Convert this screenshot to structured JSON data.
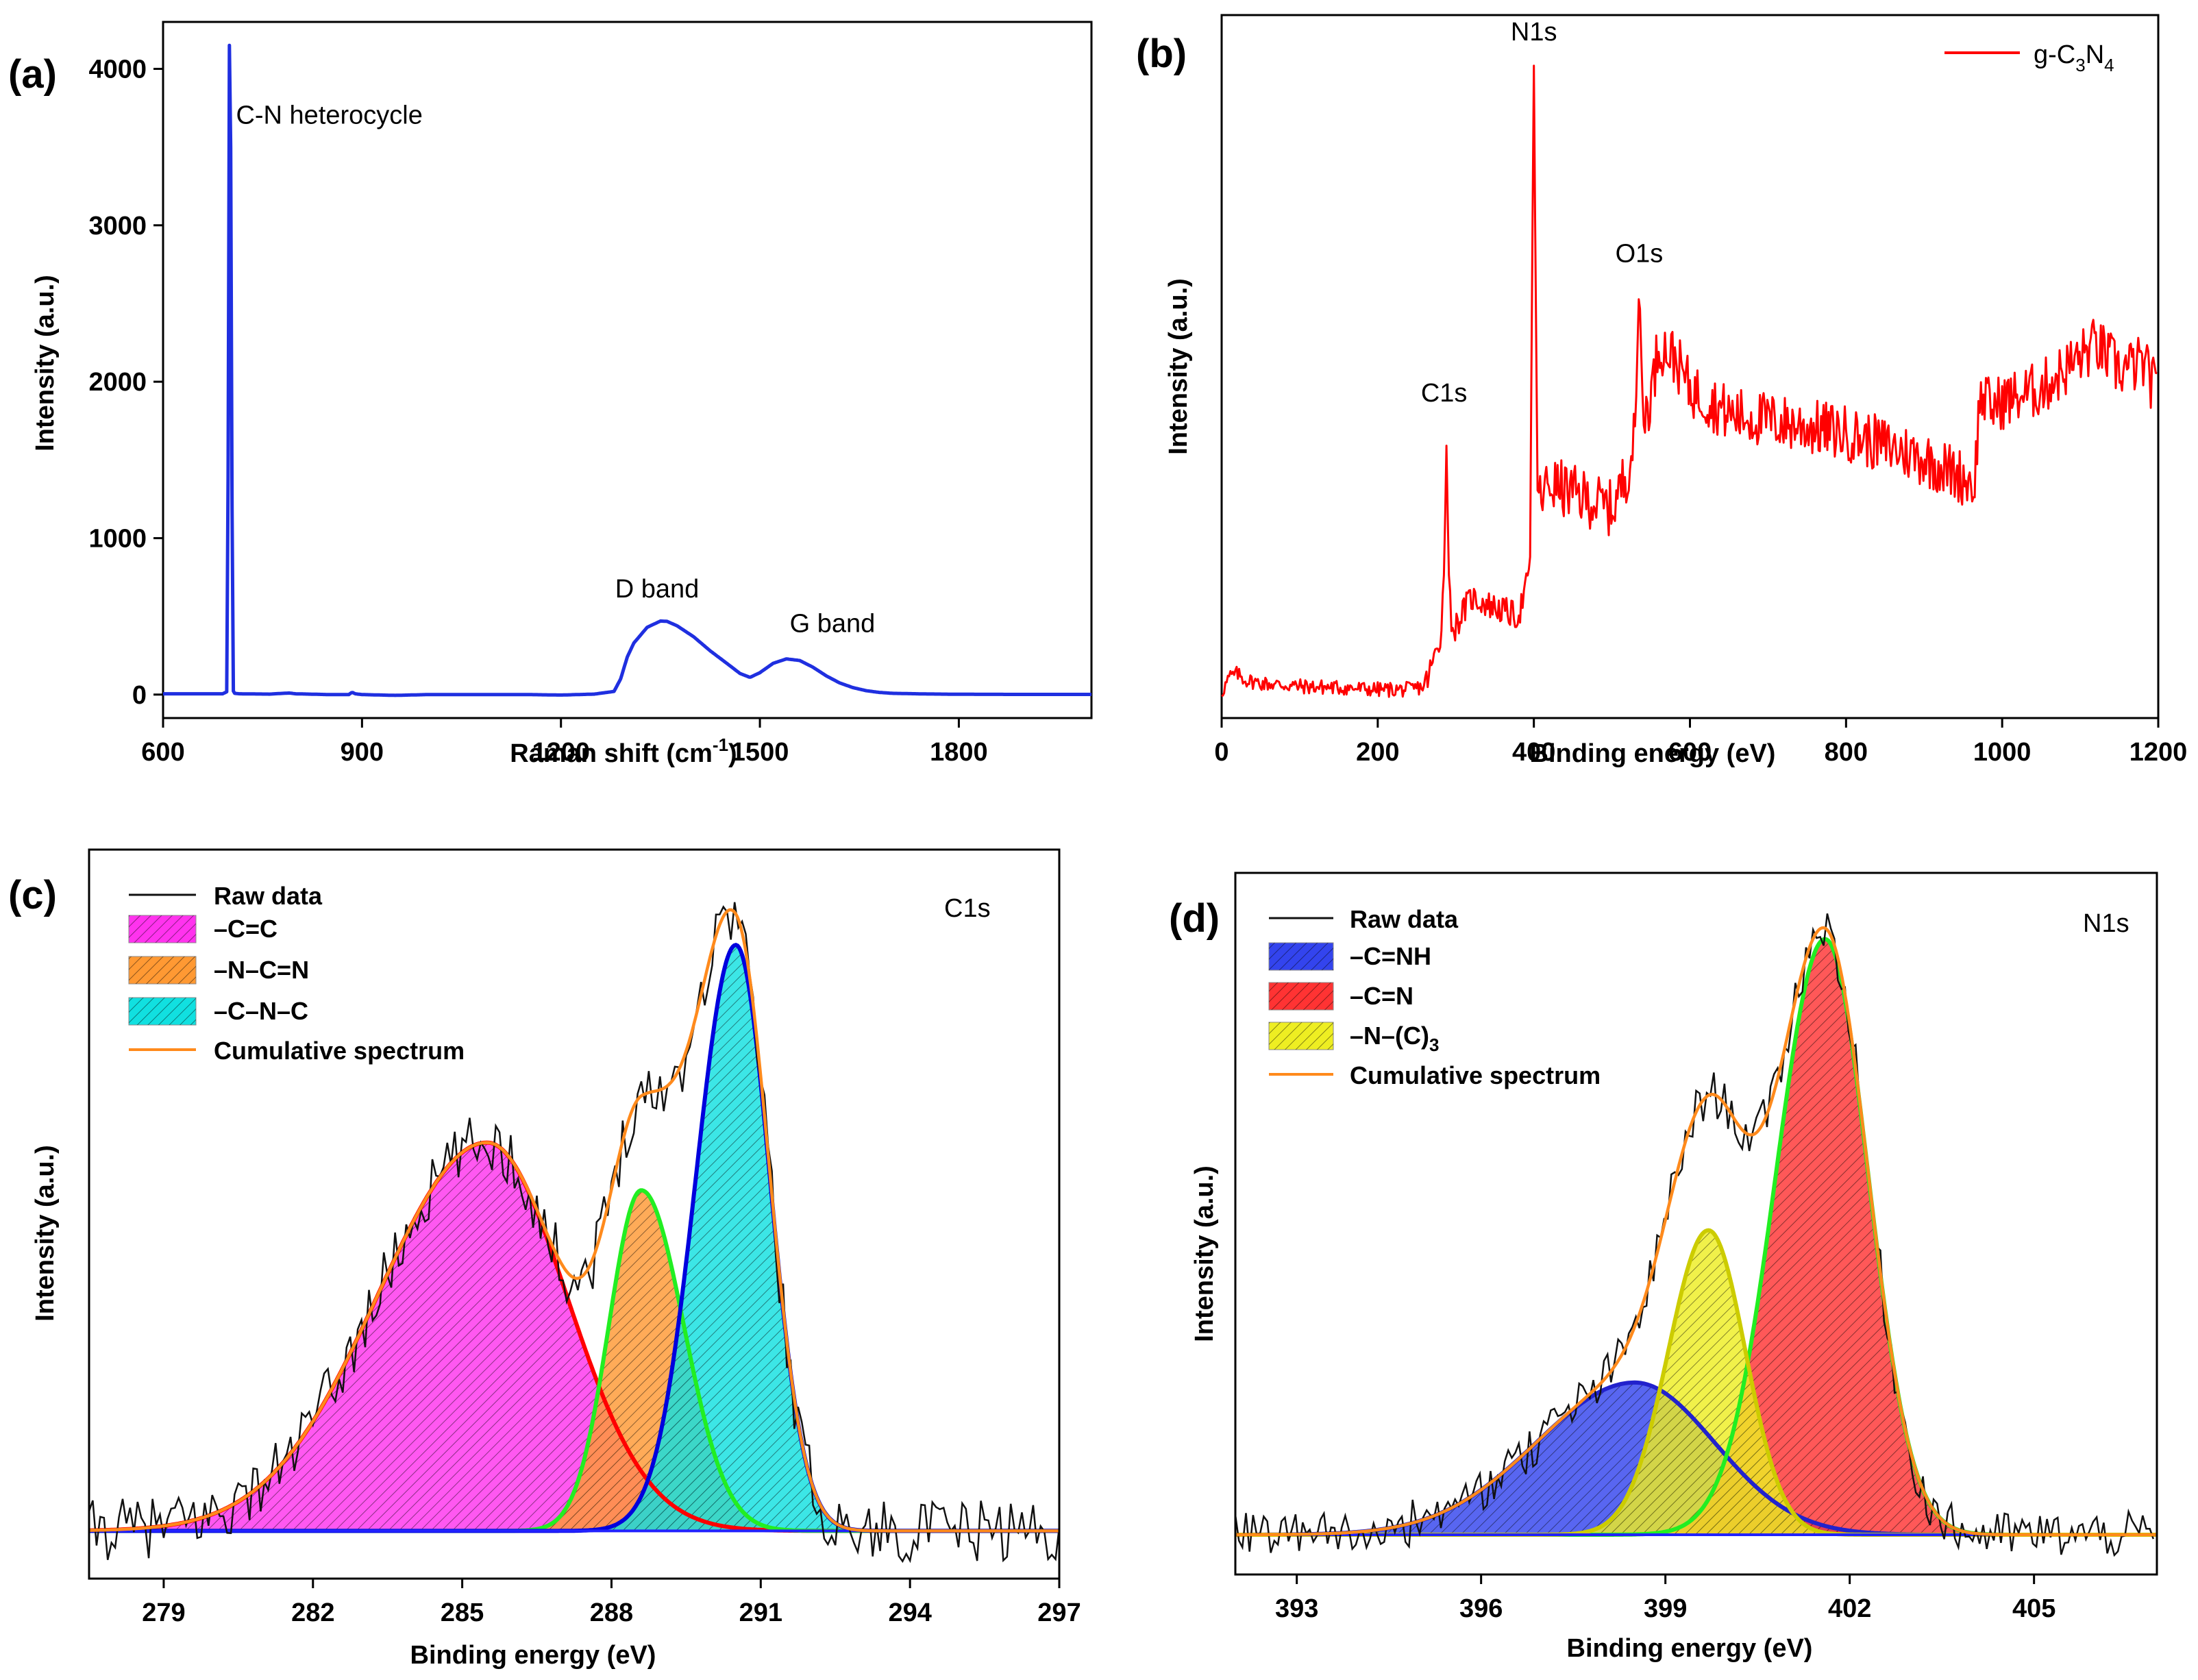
{
  "colors": {
    "raman": "#1f2fe0",
    "xps_survey": "#ff0000",
    "raw": "#111111",
    "cumulative": "#ff8a1c",
    "cc_fill": "#ff33ee",
    "ncn_fill": "#ff9933",
    "cnc_fill": "#11e0e0",
    "cnh_fill": "#3344ee",
    "cn_fill": "#ff3333",
    "nc3_fill": "#eeee22",
    "cc_line": "#ff0000",
    "ncn_line": "#22ee22",
    "cnc_line": "#0000dd",
    "cnh_line": "#2222cc",
    "cn_line": "#22ee22",
    "nc3_line": "#cccc00",
    "baseline": "#2222ff"
  },
  "chart_data": [
    {
      "panel": "(a)",
      "type": "line",
      "xlabel": "Raman shift (cm",
      "xlabel_sup": "-1",
      "xlabel_end": ")",
      "ylabel": "Intensity (a.u.)",
      "xlim": [
        600,
        2000
      ],
      "ylim": [
        -150,
        4300
      ],
      "xticks": [
        600,
        900,
        1200,
        1500,
        1800
      ],
      "yticks": [
        0,
        1000,
        2000,
        3000,
        4000
      ],
      "series": [
        {
          "name": "Raman",
          "x": [
            600,
            650,
            690,
            697,
            700,
            702,
            705,
            708,
            715,
            760,
            790,
            800,
            850,
            880,
            885,
            890,
            900,
            950,
            1000,
            1050,
            1100,
            1150,
            1200,
            1250,
            1280,
            1290,
            1300,
            1310,
            1330,
            1350,
            1360,
            1375,
            1400,
            1425,
            1450,
            1470,
            1485,
            1500,
            1520,
            1540,
            1560,
            1580,
            1600,
            1620,
            1640,
            1660,
            1680,
            1700,
            1750,
            1800,
            1900,
            2000
          ],
          "values": [
            5,
            5,
            5,
            20,
            4150,
            3500,
            30,
            8,
            5,
            3,
            10,
            5,
            0,
            0,
            15,
            5,
            0,
            -5,
            0,
            0,
            0,
            0,
            -3,
            3,
            20,
            100,
            240,
            330,
            430,
            470,
            468,
            440,
            370,
            280,
            200,
            135,
            110,
            140,
            200,
            228,
            218,
            175,
            120,
            75,
            45,
            25,
            14,
            8,
            4,
            2,
            1,
            1
          ]
        }
      ],
      "annotations": [
        {
          "text": "C-N heterocycle",
          "x": 710,
          "y": 3650
        },
        {
          "text": "D band",
          "x": 1345,
          "y": 620
        },
        {
          "text": "G band",
          "x": 1545,
          "y": 400
        }
      ]
    },
    {
      "panel": "(b)",
      "type": "line",
      "xlabel": "Binding energy (eV)",
      "ylabel": "Intensity (a.u.)",
      "xlim": [
        0,
        1200
      ],
      "ylim": [
        0,
        1000
      ],
      "xticks": [
        0,
        200,
        400,
        600,
        800,
        1000,
        1200
      ],
      "yticks": [],
      "legend": {
        "label": "g-C",
        "sub1": "3",
        "mid": "N",
        "sub2": "4",
        "position": "top-right"
      },
      "series": [
        {
          "name": "g-C3N4",
          "x": [
            0,
            10,
            20,
            30,
            50,
            100,
            150,
            200,
            240,
            260,
            270,
            280,
            285,
            288,
            291,
            295,
            300,
            310,
            320,
            340,
            360,
            380,
            395,
            398,
            400,
            402,
            405,
            410,
            420,
            440,
            460,
            480,
            500,
            520,
            530,
            535,
            540,
            550,
            560,
            580,
            600,
            650,
            700,
            750,
            800,
            850,
            900,
            950,
            965,
            970,
            975,
            985,
            1000,
            1050,
            1100,
            1120,
            1150,
            1180,
            1200
          ],
          "values": [
            10,
            35,
            40,
            30,
            25,
            20,
            18,
            15,
            15,
            20,
            55,
            95,
            200,
            400,
            200,
            110,
            115,
            140,
            160,
            150,
            140,
            130,
            200,
            700,
            1000,
            700,
            310,
            320,
            340,
            330,
            320,
            310,
            300,
            360,
            420,
            660,
            440,
            480,
            560,
            540,
            490,
            450,
            440,
            430,
            420,
            400,
            380,
            350,
            340,
            460,
            480,
            460,
            470,
            490,
            540,
            560,
            520,
            530,
            480
          ]
        }
      ],
      "annotations": [
        {
          "text": "C1s",
          "x": 285,
          "y": 470
        },
        {
          "text": "N1s",
          "x": 400,
          "y": 1040
        },
        {
          "text": "O1s",
          "x": 535,
          "y": 690
        }
      ]
    },
    {
      "panel": "(c)",
      "type": "line",
      "title_inset": "C1s",
      "xlabel": "Binding energy (eV)",
      "ylabel": "Intensity (a.u.)",
      "xlim": [
        277.5,
        297
      ],
      "ylim": [
        -0.07,
        1.0
      ],
      "xticks": [
        279,
        282,
        285,
        288,
        291,
        294,
        297
      ],
      "yticks": [],
      "legend": [
        {
          "label": "Raw data",
          "kind": "line"
        },
        {
          "label": "–C=C",
          "kind": "fill"
        },
        {
          "label": "–N–C=N",
          "kind": "fill"
        },
        {
          "label": "–C–N–C",
          "kind": "fill"
        },
        {
          "label": "Cumulative spectrum",
          "kind": "line"
        }
      ],
      "components": [
        {
          "name": "–C=C",
          "center": 285.5,
          "height": 0.57,
          "sigma_left": 2.2,
          "sigma_right": 1.6
        },
        {
          "name": "–N–C=N",
          "center": 288.6,
          "height": 0.5,
          "sigma_left": 0.65,
          "sigma_right": 0.85
        },
        {
          "name": "–C–N–C",
          "center": 290.5,
          "height": 0.86,
          "sigma_left": 0.8,
          "sigma_right": 0.68
        }
      ],
      "raw_noise": 0.045
    },
    {
      "panel": "(d)",
      "type": "line",
      "title_inset": "N1s",
      "xlabel": "Binding energy (eV)",
      "ylabel": "Intensity (a.u.)",
      "xlim": [
        392,
        407
      ],
      "ylim": [
        -0.06,
        1.0
      ],
      "xticks": [
        393,
        396,
        399,
        402,
        405
      ],
      "yticks": [],
      "legend": [
        {
          "label": "Raw data",
          "kind": "line"
        },
        {
          "label": "–C=NH",
          "kind": "fill"
        },
        {
          "label": "–C=N",
          "kind": "fill"
        },
        {
          "label": "–N–(C)",
          "sub": "3",
          "kind": "fill"
        },
        {
          "label": "Cumulative spectrum",
          "kind": "line"
        }
      ],
      "components": [
        {
          "name": "–C=NH",
          "center": 398.5,
          "height": 0.23,
          "sigma_left": 1.6,
          "sigma_right": 1.3
        },
        {
          "name": "–C=N",
          "center": 401.6,
          "height": 0.9,
          "sigma_left": 0.8,
          "sigma_right": 0.7
        },
        {
          "name": "–N–(C)3",
          "center": 399.7,
          "height": 0.46,
          "sigma_left": 0.65,
          "sigma_right": 0.6
        }
      ],
      "raw_noise": 0.035
    }
  ]
}
